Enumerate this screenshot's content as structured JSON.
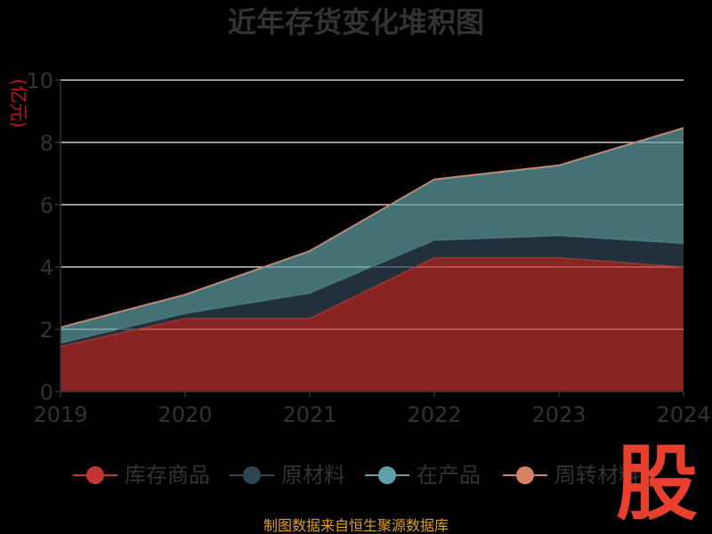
{
  "chart_data": {
    "type": "area",
    "stacked": true,
    "title": "近年存货变化堆积图",
    "ylabel": "(亿元)",
    "ylim": [
      0,
      10
    ],
    "yticks": [
      "0",
      "2",
      "4",
      "6",
      "8",
      "10"
    ],
    "categories": [
      "2019",
      "2020",
      "2021",
      "2022",
      "2023",
      "2024"
    ],
    "grid": true,
    "legend_position": "bottom",
    "series": [
      {
        "name": "库存商品",
        "color": "#c23531",
        "values": [
          1.45,
          2.35,
          2.35,
          4.3,
          4.3,
          4.0
        ]
      },
      {
        "name": "原材料",
        "color": "#2f4554",
        "values": [
          0.1,
          0.15,
          0.8,
          0.55,
          0.7,
          0.75
        ]
      },
      {
        "name": "在产品",
        "color": "#61a0a8",
        "values": [
          0.5,
          0.6,
          1.35,
          1.95,
          2.25,
          3.7
        ]
      },
      {
        "name": "周转材料",
        "color": "#d48265",
        "values": [
          0.02,
          0.02,
          0.02,
          0.02,
          0.02,
          0.02
        ]
      }
    ]
  },
  "source_text": "制图数据来自恒生聚源数据库",
  "watermark_text": "股"
}
